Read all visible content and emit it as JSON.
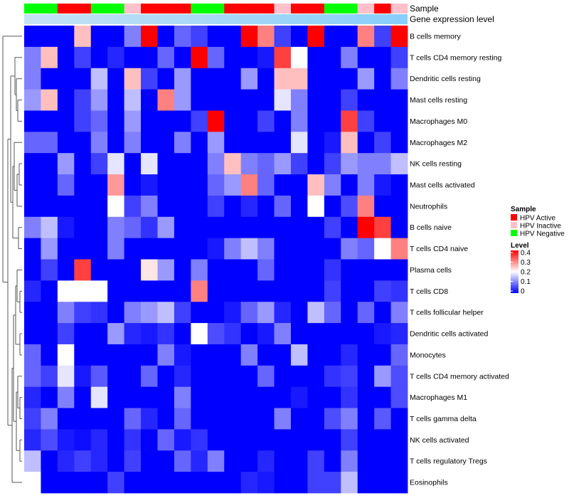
{
  "chart_data": {
    "type": "heatmap",
    "annotation_labels": [
      "Sample",
      "Gene expression level"
    ],
    "sample_annotation": [
      "HPV Negative",
      "HPV Negative",
      "HPV Active",
      "HPV Active",
      "HPV Negative",
      "HPV Negative",
      "HPV Inactive",
      "HPV Active",
      "HPV Active",
      "HPV Active",
      "HPV Negative",
      "HPV Negative",
      "HPV Active",
      "HPV Active",
      "HPV Active",
      "HPV Inactive",
      "HPV Active",
      "HPV Active",
      "HPV Negative",
      "HPV Negative",
      "HPV Inactive",
      "HPV Active",
      "HPV Inactive"
    ],
    "rows": [
      "B cells memory",
      "T cells CD4 memory resting",
      "Dendritic cells resting",
      "Mast cells resting",
      "Macrophages M0",
      "Macrophages M2",
      "NK cells resting",
      "Mast cells activated",
      "Neutrophils",
      "B cells naive",
      "T cells CD4 naive",
      "Plasma cells",
      "T cells CD8",
      "T cells follicular helper",
      "Dendritic cells activated",
      "Monocytes",
      "T cells CD4 memory activated",
      "Macrophages M1",
      "T cells gamma delta",
      "NK cells activated",
      "T cells regulatory  Tregs",
      "Eosinophils"
    ],
    "values": [
      [
        0,
        0,
        0,
        0.25,
        0,
        0,
        0.1,
        0.4,
        0,
        0.08,
        0.05,
        0,
        0,
        0.4,
        0.3,
        0.05,
        0,
        0.4,
        0,
        0,
        0.3,
        0.05,
        0.4
      ],
      [
        0.1,
        0.25,
        0,
        0.05,
        0,
        0.03,
        0,
        0,
        0.08,
        0,
        0.4,
        0.08,
        0,
        0,
        0.02,
        0.35,
        0.2,
        0,
        0,
        0.1,
        0,
        0,
        0.05
      ],
      [
        0.1,
        0,
        0,
        0,
        0.15,
        0,
        0.25,
        0.05,
        0,
        0.12,
        0,
        0,
        0,
        0.12,
        0,
        0.25,
        0.25,
        0,
        0,
        0,
        0.12,
        0,
        0.1
      ],
      [
        0.12,
        0.25,
        0,
        0.05,
        0.12,
        0,
        0.15,
        0,
        0.3,
        0.12,
        0,
        0,
        0,
        0,
        0,
        0.18,
        0.1,
        0,
        0,
        0.05,
        0,
        0,
        0
      ],
      [
        0,
        0,
        0,
        0.05,
        0.08,
        0,
        0.12,
        0,
        0,
        0,
        0.05,
        0.4,
        0,
        0,
        0.05,
        0,
        0.1,
        0,
        0,
        0.35,
        0.05,
        0,
        0
      ],
      [
        0.08,
        0.08,
        0,
        0,
        0.1,
        0,
        0.1,
        0,
        0,
        0.1,
        0,
        0.12,
        0,
        0,
        0,
        0,
        0.18,
        0,
        0.02,
        0.25,
        0,
        0.05,
        0
      ],
      [
        0,
        0,
        0.12,
        0,
        0.05,
        0.18,
        0,
        0.18,
        0,
        0,
        0,
        0.1,
        0.25,
        0.1,
        0.08,
        0.12,
        0.05,
        0,
        0.05,
        0.12,
        0.1,
        0.1,
        0.15
      ],
      [
        0,
        0,
        0.08,
        0,
        0,
        0.28,
        0,
        0.02,
        0,
        0,
        0,
        0.08,
        0.12,
        0.3,
        0.08,
        0,
        0,
        0.25,
        0.1,
        0,
        0.1,
        0.02,
        0
      ],
      [
        0,
        0,
        0,
        0,
        0,
        0.2,
        0.05,
        0.1,
        0,
        0,
        0,
        0.05,
        0,
        0.03,
        0,
        0.08,
        0,
        0.2,
        0,
        0.06,
        0.3,
        0,
        0
      ],
      [
        0.1,
        0.15,
        0.02,
        0,
        0,
        0.1,
        0.08,
        0.04,
        0.12,
        0,
        0,
        0,
        0,
        0,
        0,
        0,
        0,
        0,
        0.05,
        0,
        0.4,
        0.35,
        0
      ],
      [
        0,
        0.12,
        0,
        0,
        0,
        0.1,
        0,
        0,
        0,
        0,
        0,
        0.02,
        0.1,
        0.15,
        0.1,
        0,
        0,
        0,
        0,
        0.1,
        0.08,
        0.2,
        0.3
      ],
      [
        0,
        0.05,
        0,
        0.35,
        0,
        0,
        0,
        0.22,
        0.12,
        0,
        0.1,
        0,
        0,
        0,
        0.08,
        0,
        0,
        0,
        0.04,
        0,
        0,
        0,
        0
      ],
      [
        0.03,
        0,
        0.2,
        0.2,
        0.2,
        0,
        0,
        0,
        0,
        0,
        0.3,
        0,
        0,
        0,
        0,
        0,
        0,
        0,
        0.05,
        0,
        0,
        0.05,
        0.04
      ],
      [
        0,
        0,
        0.1,
        0.05,
        0.04,
        0,
        0.1,
        0.12,
        0.15,
        0.05,
        0,
        0,
        0.02,
        0.08,
        0.12,
        0.03,
        0,
        0.15,
        0.08,
        0,
        0.08,
        0,
        0.1
      ],
      [
        0,
        0,
        0.05,
        0,
        0,
        0.12,
        0.03,
        0.02,
        0.04,
        0,
        0.2,
        0.06,
        0.04,
        0,
        0.02,
        0.1,
        0,
        0,
        0,
        0,
        0,
        0.02,
        0.03
      ],
      [
        0.08,
        0,
        0.2,
        0,
        0,
        0,
        0,
        0,
        0.1,
        0.02,
        0,
        0,
        0,
        0.1,
        0,
        0,
        0.15,
        0,
        0,
        0.03,
        0,
        0,
        0.08
      ],
      [
        0.08,
        0.05,
        0.18,
        0.02,
        0.07,
        0,
        0,
        0.08,
        0,
        0.03,
        0,
        0,
        0,
        0,
        0.08,
        0,
        0,
        0,
        0.04,
        0.05,
        0,
        0.12,
        0.06
      ],
      [
        0.03,
        0,
        0.1,
        0,
        0.18,
        0,
        0,
        0,
        0,
        0.1,
        0,
        0,
        0,
        0,
        0,
        0,
        0.02,
        0,
        0,
        0.04,
        0,
        0,
        0.06
      ],
      [
        0.05,
        0.1,
        0,
        0,
        0,
        0,
        0.08,
        0.03,
        0,
        0.08,
        0,
        0,
        0,
        0,
        0,
        0.1,
        0,
        0,
        0.06,
        0.1,
        0,
        0.07,
        0
      ],
      [
        0.03,
        0.06,
        0.02,
        0.01,
        0.03,
        0,
        0.04,
        0,
        0.08,
        0.02,
        0.04,
        0,
        0,
        0,
        0,
        0,
        0,
        0,
        0,
        0.05,
        0,
        0,
        0
      ],
      [
        0.15,
        0,
        0.03,
        0.05,
        0.03,
        0,
        0.05,
        0,
        0,
        0.08,
        0.03,
        0.1,
        0,
        0,
        0.03,
        0,
        0,
        0.05,
        0,
        0.1,
        0,
        0,
        0
      ],
      [
        0.2,
        0,
        0,
        0,
        0,
        0.05,
        0,
        0,
        0,
        0,
        0,
        0,
        0,
        0.03,
        0.02,
        0,
        0,
        0.05,
        0.05,
        0.15,
        0,
        0,
        0
      ]
    ],
    "legend_sample_title": "Sample",
    "legend_sample_entries": [
      {
        "label": "HPV Active",
        "color": "#FF0000"
      },
      {
        "label": "HPV Inactive",
        "color": "#FFC0CB"
      },
      {
        "label": "HPV Negative",
        "color": "#00FF00"
      }
    ],
    "legend_level_title": "Level",
    "legend_level_ticks": [
      "0.4",
      "0.3",
      "0.2",
      "0.1",
      "0"
    ],
    "legend_level_tick_values": [
      0.4,
      0.3,
      0.2,
      0.1,
      0
    ],
    "color_scale": {
      "low": "#0000FF",
      "mid": "#FFFFFF",
      "high": "#FF0000",
      "min": 0,
      "mid_value": 0.2,
      "max": 0.4
    },
    "expression_bar_colors": [
      "#C6E2F5",
      "#87CEFA"
    ],
    "dendrogram_color": "#555555"
  }
}
